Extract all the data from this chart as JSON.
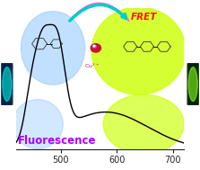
{
  "xlim": [
    420,
    720
  ],
  "ylim": [
    0,
    1.05
  ],
  "xlabel_ticks": [
    500,
    600,
    700
  ],
  "fluorescence_label": "Fluorescence",
  "fluorescence_color": "#aa00ff",
  "fret_label": "FRET",
  "fret_color": "#ff1111",
  "bg_left_color": "#99ccff",
  "bg_right_color": "#ccff00",
  "bg_left_top_color": "#aaddff",
  "curve_color": "#000000",
  "axis_color": "#222222",
  "fig_bg": "#ffffff",
  "flask_left_bg": "#001a33",
  "flask_right_bg": "#001a00",
  "flask_left_glow": "#00eedd",
  "flask_right_glow": "#88ff33"
}
